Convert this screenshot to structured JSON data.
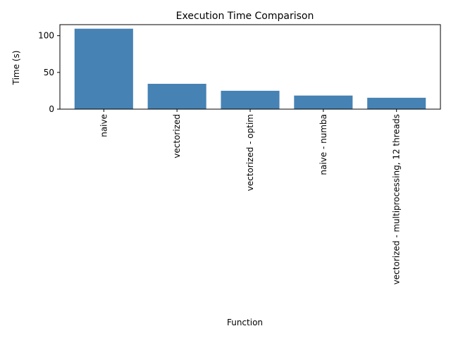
{
  "chart_data": {
    "type": "bar",
    "title": "Execution Time Comparison",
    "xlabel": "Function",
    "ylabel": "Time (s)",
    "categories": [
      "naive",
      "vectorized",
      "vectorized - optim",
      "naive - numba",
      "vectorized - multiprocessing, 12 threads"
    ],
    "values": [
      109.5,
      34.5,
      25.0,
      18.5,
      15.5
    ],
    "ylim": [
      0,
      115
    ],
    "yticks": [
      0,
      50,
      100
    ],
    "ytick_labels": [
      "0",
      "50",
      "100"
    ],
    "x_tick_rotation": "vertical",
    "bar_color": "#4682b4",
    "grid": false,
    "legend": "none"
  }
}
